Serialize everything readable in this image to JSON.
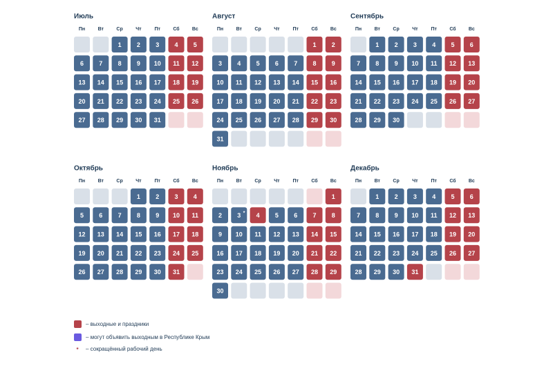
{
  "weekdays": [
    "Пн",
    "Вт",
    "Ср",
    "Чт",
    "Пт",
    "Сб",
    "Вс"
  ],
  "months": [
    {
      "name": "Июль",
      "cells": [
        null,
        null,
        {
          "day": 1
        },
        {
          "day": 2
        },
        {
          "day": 3
        },
        {
          "day": 4,
          "holiday": true
        },
        {
          "day": 5,
          "holiday": true
        },
        {
          "day": 6
        },
        {
          "day": 7
        },
        {
          "day": 8
        },
        {
          "day": 9
        },
        {
          "day": 10
        },
        {
          "day": 11,
          "holiday": true
        },
        {
          "day": 12,
          "holiday": true
        },
        {
          "day": 13
        },
        {
          "day": 14
        },
        {
          "day": 15
        },
        {
          "day": 16
        },
        {
          "day": 17
        },
        {
          "day": 18,
          "holiday": true
        },
        {
          "day": 19,
          "holiday": true
        },
        {
          "day": 20
        },
        {
          "day": 21
        },
        {
          "day": 22
        },
        {
          "day": 23
        },
        {
          "day": 24
        },
        {
          "day": 25,
          "holiday": true
        },
        {
          "day": 26,
          "holiday": true
        },
        {
          "day": 27
        },
        {
          "day": 28
        },
        {
          "day": 29
        },
        {
          "day": 30
        },
        {
          "day": 31
        },
        null,
        null
      ]
    },
    {
      "name": "Август",
      "cells": [
        null,
        null,
        null,
        null,
        null,
        {
          "day": 1,
          "holiday": true
        },
        {
          "day": 2,
          "holiday": true
        },
        {
          "day": 3
        },
        {
          "day": 4
        },
        {
          "day": 5
        },
        {
          "day": 6
        },
        {
          "day": 7
        },
        {
          "day": 8,
          "holiday": true
        },
        {
          "day": 9,
          "holiday": true
        },
        {
          "day": 10
        },
        {
          "day": 11
        },
        {
          "day": 12
        },
        {
          "day": 13
        },
        {
          "day": 14
        },
        {
          "day": 15,
          "holiday": true
        },
        {
          "day": 16,
          "holiday": true
        },
        {
          "day": 17
        },
        {
          "day": 18
        },
        {
          "day": 19
        },
        {
          "day": 20
        },
        {
          "day": 21
        },
        {
          "day": 22,
          "holiday": true
        },
        {
          "day": 23,
          "holiday": true
        },
        {
          "day": 24
        },
        {
          "day": 25
        },
        {
          "day": 26
        },
        {
          "day": 27
        },
        {
          "day": 28
        },
        {
          "day": 29,
          "holiday": true
        },
        {
          "day": 30,
          "holiday": true
        },
        {
          "day": 31
        },
        null,
        null,
        null,
        null,
        null,
        null
      ]
    },
    {
      "name": "Сентябрь",
      "cells": [
        null,
        {
          "day": 1
        },
        {
          "day": 2
        },
        {
          "day": 3
        },
        {
          "day": 4
        },
        {
          "day": 5,
          "holiday": true
        },
        {
          "day": 6,
          "holiday": true
        },
        {
          "day": 7
        },
        {
          "day": 8
        },
        {
          "day": 9
        },
        {
          "day": 10
        },
        {
          "day": 11
        },
        {
          "day": 12,
          "holiday": true
        },
        {
          "day": 13,
          "holiday": true
        },
        {
          "day": 14
        },
        {
          "day": 15
        },
        {
          "day": 16
        },
        {
          "day": 17
        },
        {
          "day": 18
        },
        {
          "day": 19,
          "holiday": true
        },
        {
          "day": 20,
          "holiday": true
        },
        {
          "day": 21
        },
        {
          "day": 22
        },
        {
          "day": 23
        },
        {
          "day": 24
        },
        {
          "day": 25
        },
        {
          "day": 26,
          "holiday": true
        },
        {
          "day": 27,
          "holiday": true
        },
        {
          "day": 28
        },
        {
          "day": 29
        },
        {
          "day": 30
        },
        null,
        null,
        null,
        null
      ]
    },
    {
      "name": "Октябрь",
      "cells": [
        null,
        null,
        null,
        {
          "day": 1
        },
        {
          "day": 2
        },
        {
          "day": 3,
          "holiday": true
        },
        {
          "day": 4,
          "holiday": true
        },
        {
          "day": 5
        },
        {
          "day": 6
        },
        {
          "day": 7
        },
        {
          "day": 8
        },
        {
          "day": 9
        },
        {
          "day": 10,
          "holiday": true
        },
        {
          "day": 11,
          "holiday": true
        },
        {
          "day": 12
        },
        {
          "day": 13
        },
        {
          "day": 14
        },
        {
          "day": 15
        },
        {
          "day": 16
        },
        {
          "day": 17,
          "holiday": true
        },
        {
          "day": 18,
          "holiday": true
        },
        {
          "day": 19
        },
        {
          "day": 20
        },
        {
          "day": 21
        },
        {
          "day": 22
        },
        {
          "day": 23
        },
        {
          "day": 24,
          "holiday": true
        },
        {
          "day": 25,
          "holiday": true
        },
        {
          "day": 26
        },
        {
          "day": 27
        },
        {
          "day": 28
        },
        {
          "day": 29
        },
        {
          "day": 30
        },
        {
          "day": 31,
          "holiday": true
        },
        null
      ]
    },
    {
      "name": "Ноябрь",
      "cells": [
        null,
        null,
        null,
        null,
        null,
        null,
        {
          "day": 1,
          "holiday": true
        },
        {
          "day": 2
        },
        {
          "day": 3,
          "short": true
        },
        {
          "day": 4,
          "holiday": true
        },
        {
          "day": 5
        },
        {
          "day": 6
        },
        {
          "day": 7,
          "holiday": true
        },
        {
          "day": 8,
          "holiday": true
        },
        {
          "day": 9
        },
        {
          "day": 10
        },
        {
          "day": 11
        },
        {
          "day": 12
        },
        {
          "day": 13
        },
        {
          "day": 14,
          "holiday": true
        },
        {
          "day": 15,
          "holiday": true
        },
        {
          "day": 16
        },
        {
          "day": 17
        },
        {
          "day": 18
        },
        {
          "day": 19
        },
        {
          "day": 20
        },
        {
          "day": 21,
          "holiday": true
        },
        {
          "day": 22,
          "holiday": true
        },
        {
          "day": 23
        },
        {
          "day": 24
        },
        {
          "day": 25
        },
        {
          "day": 26
        },
        {
          "day": 27
        },
        {
          "day": 28,
          "holiday": true
        },
        {
          "day": 29,
          "holiday": true
        },
        {
          "day": 30
        },
        null,
        null,
        null,
        null,
        null,
        null
      ]
    },
    {
      "name": "Декабрь",
      "cells": [
        null,
        {
          "day": 1
        },
        {
          "day": 2
        },
        {
          "day": 3
        },
        {
          "day": 4
        },
        {
          "day": 5,
          "holiday": true
        },
        {
          "day": 6,
          "holiday": true
        },
        {
          "day": 7
        },
        {
          "day": 8
        },
        {
          "day": 9
        },
        {
          "day": 10
        },
        {
          "day": 11
        },
        {
          "day": 12,
          "holiday": true
        },
        {
          "day": 13,
          "holiday": true
        },
        {
          "day": 14
        },
        {
          "day": 15
        },
        {
          "day": 16
        },
        {
          "day": 17
        },
        {
          "day": 18
        },
        {
          "day": 19,
          "holiday": true
        },
        {
          "day": 20,
          "holiday": true
        },
        {
          "day": 21
        },
        {
          "day": 22
        },
        {
          "day": 23
        },
        {
          "day": 24
        },
        {
          "day": 25
        },
        {
          "day": 26,
          "holiday": true
        },
        {
          "day": 27,
          "holiday": true
        },
        {
          "day": 28
        },
        {
          "day": 29
        },
        {
          "day": 30
        },
        {
          "day": 31,
          "holiday": true
        },
        null,
        null,
        null
      ]
    }
  ],
  "legend": {
    "holidays": "– выходные и праздники",
    "crimea": "– могут объявить выходным в Республике Крым",
    "short_marker": "*",
    "short": "– сокращённый рабочий день"
  }
}
